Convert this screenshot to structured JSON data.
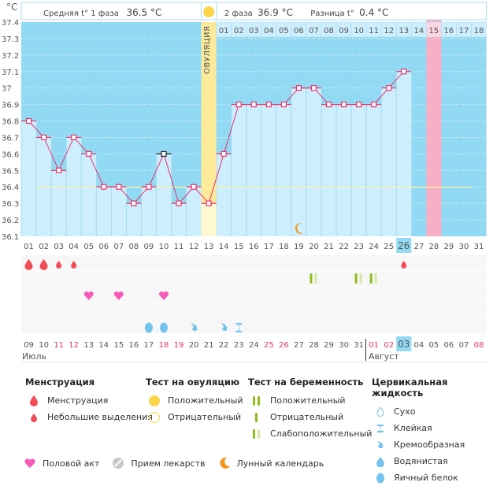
{
  "header": {
    "unit_label": "°C",
    "phase1_label": "Средняя t° 1 фаза",
    "phase1_value": "36.5 °C",
    "phase2_label": "2 фаза",
    "phase2_value": "36.9 °C",
    "diff_label": "Разница t°",
    "diff_value": "0.4 °C",
    "ovulation_label": "ОВУЛЯЦИЯ"
  },
  "colors": {
    "sky": "#92d9f3",
    "bar": "#cdeefc",
    "line": "#e8336b",
    "ovulation": "#fce99a",
    "period_expected": "#f7afc6",
    "cover_line": "#fff4a0",
    "weekend": "#e8336b",
    "today": "#92d9f3"
  },
  "chart_data": {
    "type": "line",
    "title": "",
    "xlabel": "",
    "ylabel": "°C",
    "ylim": [
      36.1,
      37.4
    ],
    "y_ticks": [
      "37.4",
      "37.3",
      "37.2",
      "37.1",
      "37",
      "36.9",
      "36.8",
      "36.7",
      "36.6",
      "36.5",
      "36.4",
      "36.3",
      "36.2",
      "36.1"
    ],
    "cycle_days": [
      "01",
      "02",
      "03",
      "04",
      "05",
      "06",
      "07",
      "08",
      "09",
      "10",
      "11",
      "12",
      "13",
      "14",
      "15",
      "16",
      "17",
      "18",
      "19",
      "20",
      "21",
      "22",
      "23",
      "24",
      "25",
      "26",
      "27",
      "28",
      "29",
      "30",
      "31"
    ],
    "temperatures": [
      36.8,
      36.7,
      36.5,
      36.7,
      36.6,
      36.4,
      36.4,
      36.3,
      36.4,
      36.6,
      36.3,
      36.4,
      36.3,
      36.6,
      36.9,
      36.9,
      36.9,
      36.9,
      37.0,
      37.0,
      36.9,
      36.9,
      36.9,
      36.9,
      37.0,
      37.1
    ],
    "highlighted_point_day": 10,
    "cover_line": 36.4,
    "ovulation_day": 13,
    "current_day": 26,
    "expected_period_day": 28,
    "phase2_day_labels": [
      "01",
      "02",
      "03",
      "04",
      "05",
      "06",
      "07",
      "08",
      "09",
      "10",
      "11",
      "12",
      "13",
      "14",
      "15",
      "16",
      "17",
      "18"
    ],
    "phase2_highlighted_label": "15",
    "moon_day": 19,
    "menstruation": [
      {
        "day": 1,
        "type": "heavy"
      },
      {
        "day": 2,
        "type": "heavy"
      },
      {
        "day": 3,
        "type": "light"
      },
      {
        "day": 4,
        "type": "light"
      },
      {
        "day": 26,
        "type": "light"
      }
    ],
    "pregnancy_tests": [
      {
        "day": 20,
        "type": "weak-positive"
      },
      {
        "day": 23,
        "type": "weak-positive"
      },
      {
        "day": 24,
        "type": "weak-positive"
      }
    ],
    "intercourse_days": [
      5,
      7,
      10
    ],
    "cervical_fluid": [
      {
        "day": 9,
        "type": "egg-white"
      },
      {
        "day": 10,
        "type": "egg-white"
      },
      {
        "day": 12,
        "type": "creamy"
      },
      {
        "day": 14,
        "type": "creamy"
      },
      {
        "day": 15,
        "type": "sticky"
      }
    ],
    "calendar_dates": [
      "09",
      "10",
      "11",
      "12",
      "13",
      "14",
      "15",
      "16",
      "17",
      "18",
      "19",
      "20",
      "21",
      "22",
      "23",
      "24",
      "25",
      "26",
      "27",
      "28",
      "29",
      "30",
      "31",
      "01",
      "02",
      "03",
      "04",
      "05",
      "06",
      "07",
      "08"
    ],
    "weekend_dates_idx": [
      2,
      3,
      9,
      10,
      16,
      17,
      23,
      24,
      30
    ],
    "today_date_idx": 25,
    "month_labels": [
      {
        "label": "Июль",
        "start_idx": 0
      },
      {
        "label": "Август",
        "start_idx": 23
      }
    ]
  },
  "legend": {
    "menstruation": {
      "title": "Менструация",
      "items": [
        "Менструация",
        "Небольшие выделения"
      ]
    },
    "ovulation_test": {
      "title": "Тест на овуляцию",
      "items": [
        "Положительный",
        "Отрицательный"
      ]
    },
    "pregnancy_test": {
      "title": "Тест на беременность",
      "items": [
        "Положительный",
        "Отрицательный",
        "Слабоположительный"
      ]
    },
    "cervical_fluid": {
      "title": "Цервикальная жидкость",
      "items": [
        "Сухо",
        "Клейкая",
        "Кремообразная",
        "Водянистая",
        "Яичный белок"
      ]
    },
    "other": [
      "Половой акт",
      "Прием лекарств",
      "Лунный календарь"
    ]
  }
}
